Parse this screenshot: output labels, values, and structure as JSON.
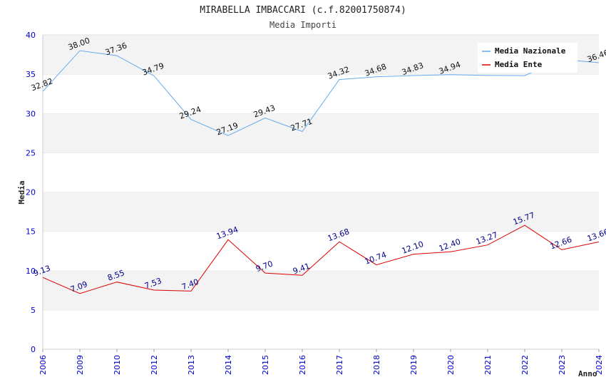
{
  "chart_data": {
    "type": "line",
    "title": "MIRABELLA IMBACCARI (c.f.82001750874)",
    "subtitle": "Media Importi",
    "xlabel": "Anno",
    "ylabel": "Media",
    "ylim": [
      0,
      40
    ],
    "yticks": [
      "0",
      "5",
      "10",
      "15",
      "20",
      "25",
      "30",
      "35",
      "40"
    ],
    "categories": [
      "2006",
      "2009",
      "2010",
      "2012",
      "2013",
      "2014",
      "2015",
      "2016",
      "2017",
      "2018",
      "2019",
      "2020",
      "2021",
      "2022",
      "2023",
      "2024"
    ],
    "grid": true,
    "legend_position": "top-right",
    "series": [
      {
        "name": "Media Nazionale",
        "color": "#66aaee",
        "values": [
          32.82,
          38.0,
          37.36,
          34.79,
          29.24,
          27.19,
          29.43,
          27.71,
          34.32,
          34.68,
          34.83,
          34.94,
          34.85,
          34.82,
          36.9,
          36.46
        ],
        "labels": [
          "32.82",
          "38.00",
          "37.36",
          "34.79",
          "29.24",
          "27.19",
          "29.43",
          "27.71",
          "34.32",
          "34.68",
          "34.83",
          "34.94",
          "",
          "",
          "",
          "36.46"
        ]
      },
      {
        "name": "Media Ente",
        "color": "#dd0000",
        "values": [
          9.13,
          7.09,
          8.55,
          7.53,
          7.4,
          13.94,
          9.7,
          9.41,
          13.68,
          10.74,
          12.1,
          12.4,
          13.27,
          15.77,
          12.66,
          13.66
        ],
        "labels": [
          "9.13",
          "7.09",
          "8.55",
          "7.53",
          "7.40",
          "13.94",
          "9.70",
          "9.41",
          "13.68",
          "10.74",
          "12.10",
          "12.40",
          "13.27",
          "15.77",
          "12.66",
          "13.66"
        ]
      }
    ]
  }
}
